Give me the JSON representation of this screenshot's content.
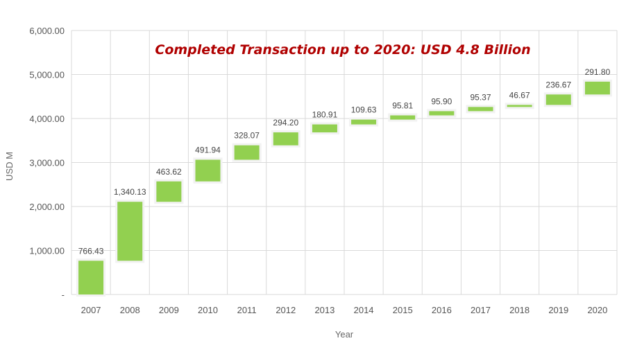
{
  "chart_data": {
    "type": "bar",
    "subtype": "waterfall",
    "title": "Completed Transaction up to 2020: USD 4.8 Billion",
    "title_color": "#b00000",
    "xlabel": "Year",
    "ylabel": "USD M",
    "ylim": [
      0,
      6000
    ],
    "yticks": [
      0,
      1000,
      2000,
      3000,
      4000,
      5000,
      6000
    ],
    "ytick_labels": [
      "-",
      "1,000.00",
      "2,000.00",
      "3,000.00",
      "4,000.00",
      "5,000.00",
      "6,000.00"
    ],
    "grid": true,
    "bar_color": "#92d050",
    "categories": [
      "2007",
      "2008",
      "2009",
      "2010",
      "2011",
      "2012",
      "2013",
      "2014",
      "2015",
      "2016",
      "2017",
      "2018",
      "2019",
      "2020"
    ],
    "values": [
      766.43,
      1340.13,
      463.62,
      491.94,
      328.07,
      294.2,
      180.91,
      109.63,
      95.81,
      95.9,
      95.37,
      46.67,
      236.67,
      291.8
    ],
    "value_labels": [
      "766.43",
      "1,340.13",
      "463.62",
      "491.94",
      "328.07",
      "294.20",
      "180.91",
      "109.63",
      "95.81",
      "95.90",
      "95.37",
      "46.67",
      "236.67",
      "291.80"
    ]
  }
}
